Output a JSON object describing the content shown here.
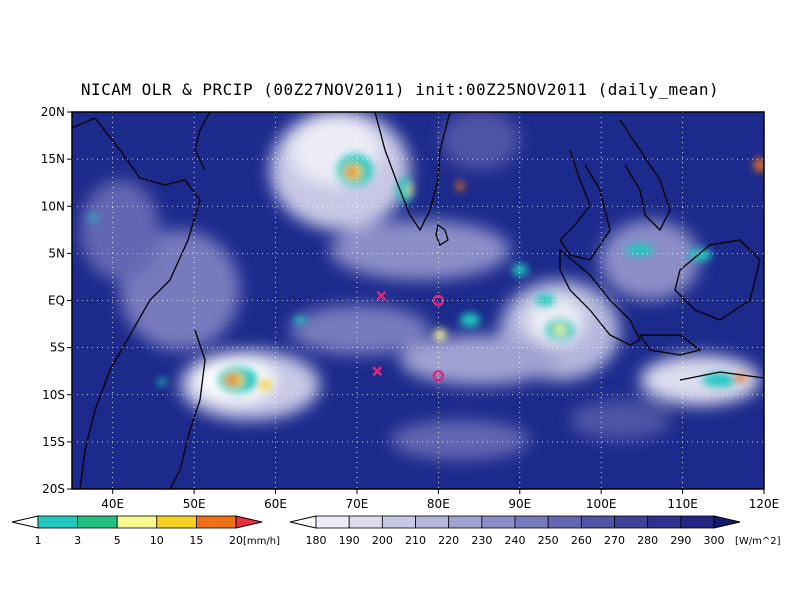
{
  "title": "NICAM OLR & PRCIP (00Z27NOV2011) init:00Z25NOV2011 (daily_mean)",
  "map": {
    "lon_range": [
      35,
      120
    ],
    "lat_range": [
      -20,
      20
    ],
    "lon_ticks": [
      {
        "v": 40,
        "label": "40E"
      },
      {
        "v": 50,
        "label": "50E"
      },
      {
        "v": 60,
        "label": "60E"
      },
      {
        "v": 70,
        "label": "70E"
      },
      {
        "v": 80,
        "label": "80E"
      },
      {
        "v": 90,
        "label": "90E"
      },
      {
        "v": 100,
        "label": "100E"
      },
      {
        "v": 110,
        "label": "110E"
      },
      {
        "v": 120,
        "label": "120E"
      }
    ],
    "lat_ticks": [
      {
        "v": 20,
        "label": "20N"
      },
      {
        "v": 15,
        "label": "15N"
      },
      {
        "v": 10,
        "label": "10N"
      },
      {
        "v": 5,
        "label": "5N"
      },
      {
        "v": 0,
        "label": "EQ"
      },
      {
        "v": -5,
        "label": "5S"
      },
      {
        "v": -10,
        "label": "10S"
      },
      {
        "v": -15,
        "label": "15S"
      },
      {
        "v": -20,
        "label": "20S"
      }
    ],
    "grid": "dotted",
    "background_color": "#1c2a8c",
    "markers": [
      {
        "type": "cross",
        "lon": 73,
        "lat": 0.5,
        "color": "#e0267c"
      },
      {
        "type": "cross",
        "lon": 72.5,
        "lat": -7.5,
        "color": "#e0267c"
      },
      {
        "type": "circle",
        "lon": 80,
        "lat": 0,
        "color": "#e0267c"
      },
      {
        "type": "circle",
        "lon": 80,
        "lat": -8,
        "color": "#e0267c"
      }
    ]
  },
  "precip_legend": {
    "unit": "[mm/h]",
    "labels": [
      "1",
      "3",
      "5",
      "10",
      "15",
      "20"
    ],
    "colors": [
      "#ffffff",
      "#22c8c0",
      "#22c080",
      "#f8f890",
      "#f8d020",
      "#f07018",
      "#e83040"
    ]
  },
  "olr_legend": {
    "unit": "[W/m^2]",
    "labels": [
      "180",
      "190",
      "200",
      "210",
      "220",
      "230",
      "240",
      "250",
      "260",
      "270",
      "280",
      "290",
      "300"
    ],
    "colors": [
      "#ffffff",
      "#ececf6",
      "#dcdcee",
      "#c8c8e6",
      "#b4b6dc",
      "#a0a2d2",
      "#8c8ec8",
      "#787abe",
      "#6466b2",
      "#5054a6",
      "#3e429a",
      "#2e328e",
      "#222682",
      "#141a6e"
    ]
  }
}
